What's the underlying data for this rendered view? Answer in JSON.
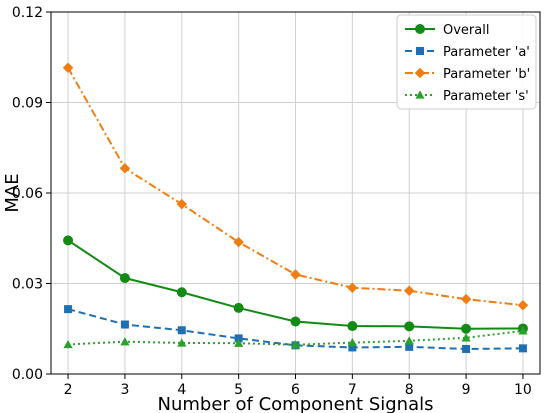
{
  "chart_data": {
    "type": "line",
    "xlabel": "Number of Component Signals",
    "ylabel": "MAE",
    "x": [
      2,
      3,
      4,
      5,
      6,
      7,
      8,
      9,
      10
    ],
    "xlim": [
      1.7,
      10.3
    ],
    "ylim": [
      0,
      0.12
    ],
    "yticks": [
      "0.00",
      "0.03",
      "0.06",
      "0.09",
      "0.12"
    ],
    "xticks": [
      "2",
      "3",
      "4",
      "5",
      "6",
      "7",
      "8",
      "9",
      "10"
    ],
    "grid": true,
    "legend_position": "top-right",
    "series": [
      {
        "name": "Overall",
        "color": "#138a13",
        "dash": "solid",
        "marker": "circle",
        "values": [
          0.0443,
          0.0318,
          0.0271,
          0.0219,
          0.0174,
          0.0159,
          0.0158,
          0.015,
          0.0151
        ]
      },
      {
        "name": "Parameter 'a'",
        "color": "#1f6fb4",
        "dash": "dashed",
        "marker": "square",
        "values": [
          0.0215,
          0.0164,
          0.0145,
          0.0118,
          0.0095,
          0.0088,
          0.009,
          0.0083,
          0.0085
        ]
      },
      {
        "name": "Parameter 'b'",
        "color": "#f07d12",
        "dash": "dashdot",
        "marker": "diamond",
        "values": [
          0.1015,
          0.0682,
          0.0563,
          0.0437,
          0.033,
          0.0286,
          0.0276,
          0.0248,
          0.0228
        ]
      },
      {
        "name": "Parameter 's'",
        "color": "#2ca02c",
        "dash": "dotted",
        "marker": "triangle",
        "values": [
          0.0098,
          0.0107,
          0.0103,
          0.0102,
          0.0097,
          0.0104,
          0.011,
          0.012,
          0.0143
        ]
      }
    ]
  }
}
